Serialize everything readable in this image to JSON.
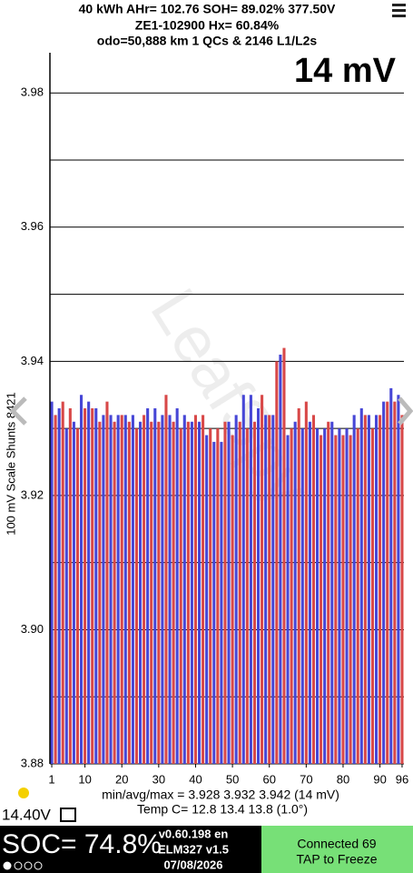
{
  "header": {
    "line1": "40 kWh  AHr= 102.76  SOH= 89.02%   377.50V",
    "line2": "ZE1-102900   Hx= 60.84%",
    "line3": "odo=50,888 km 1 QCs & 2146 L1/L2s",
    "spread": "14 mV"
  },
  "chart_data": {
    "type": "bar",
    "watermark": "LeafSpy",
    "y_label": "100 mV Scale Shunts 8421",
    "values": [
      3.934,
      3.932,
      3.933,
      3.934,
      3.93,
      3.933,
      3.931,
      3.93,
      3.935,
      3.933,
      3.934,
      3.933,
      3.933,
      3.931,
      3.932,
      3.934,
      3.932,
      3.931,
      3.932,
      3.932,
      3.932,
      3.931,
      3.932,
      3.93,
      3.931,
      3.932,
      3.933,
      3.931,
      3.933,
      3.931,
      3.932,
      3.935,
      3.932,
      3.931,
      3.933,
      3.93,
      3.932,
      3.931,
      3.931,
      3.932,
      3.931,
      3.932,
      3.929,
      3.93,
      3.928,
      3.93,
      3.928,
      3.931,
      3.931,
      3.929,
      3.932,
      3.931,
      3.935,
      3.93,
      3.935,
      3.931,
      3.933,
      3.935,
      3.932,
      3.932,
      3.932,
      3.94,
      3.941,
      3.942,
      3.929,
      3.93,
      3.931,
      3.933,
      3.93,
      3.934,
      3.931,
      3.932,
      3.93,
      3.929,
      3.93,
      3.931,
      3.931,
      3.929,
      3.93,
      3.929,
      3.93,
      3.929,
      3.932,
      3.93,
      3.933,
      3.932,
      3.932,
      3.93,
      3.932,
      3.932,
      3.934,
      3.934,
      3.936,
      3.934,
      3.935,
      3.932
    ],
    "colors": [
      "#4646d6",
      "#d84848"
    ],
    "xlim": [
      0.5,
      96.5
    ],
    "xticks": [
      1,
      10,
      20,
      30,
      40,
      50,
      60,
      70,
      80,
      90,
      96
    ],
    "ylim": [
      3.88,
      3.986
    ],
    "yticks": [
      3.88,
      {
        "value": 3.9,
        "label": "3.90"
      },
      3.92,
      3.94,
      3.96,
      3.98
    ],
    "minor_yticks": [
      3.89,
      3.91,
      3.93,
      3.95,
      3.97
    ],
    "grid": true,
    "stats": "min/avg/max = 3.928 3.932 3.942  (14 mV)",
    "temps": "Temp C= 12.8  13.4  13.8  (1.0°)"
  },
  "footer": {
    "pack_voltage": "14.40V",
    "soc": "SOC= 74.8%",
    "version": "v0.60.198 en",
    "adapter": "ELM327 v1.5",
    "date": "07/08/2026",
    "status": "Connected 69",
    "action": "TAP to Freeze"
  }
}
